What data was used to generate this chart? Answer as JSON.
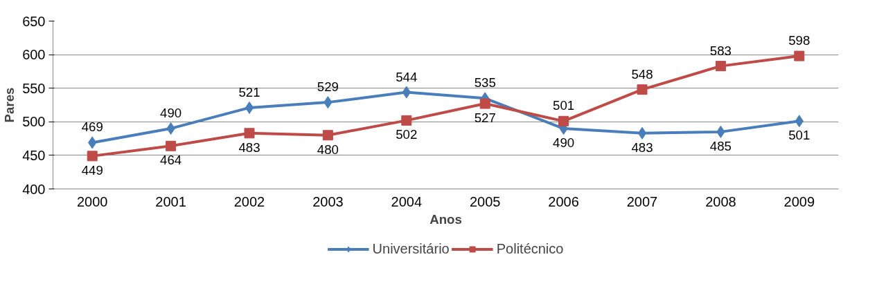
{
  "chart_data": {
    "type": "line",
    "xlabel": "Anos",
    "ylabel": "Pares",
    "categories": [
      "2000",
      "2001",
      "2002",
      "2003",
      "2004",
      "2005",
      "2006",
      "2007",
      "2008",
      "2009"
    ],
    "series": [
      {
        "name": "Universitário",
        "color": "#4a7ebb",
        "marker": "diamond",
        "values": [
          469,
          490,
          521,
          529,
          544,
          535,
          490,
          483,
          485,
          501
        ]
      },
      {
        "name": "Politécnico",
        "color": "#be4b48",
        "marker": "square",
        "values": [
          449,
          464,
          483,
          480,
          502,
          527,
          501,
          548,
          583,
          598
        ]
      }
    ],
    "ylim": [
      400,
      650
    ],
    "yticks": [
      400,
      450,
      500,
      550,
      600,
      650
    ],
    "grid": "y",
    "legend": "bottom",
    "data_labels": true
  }
}
